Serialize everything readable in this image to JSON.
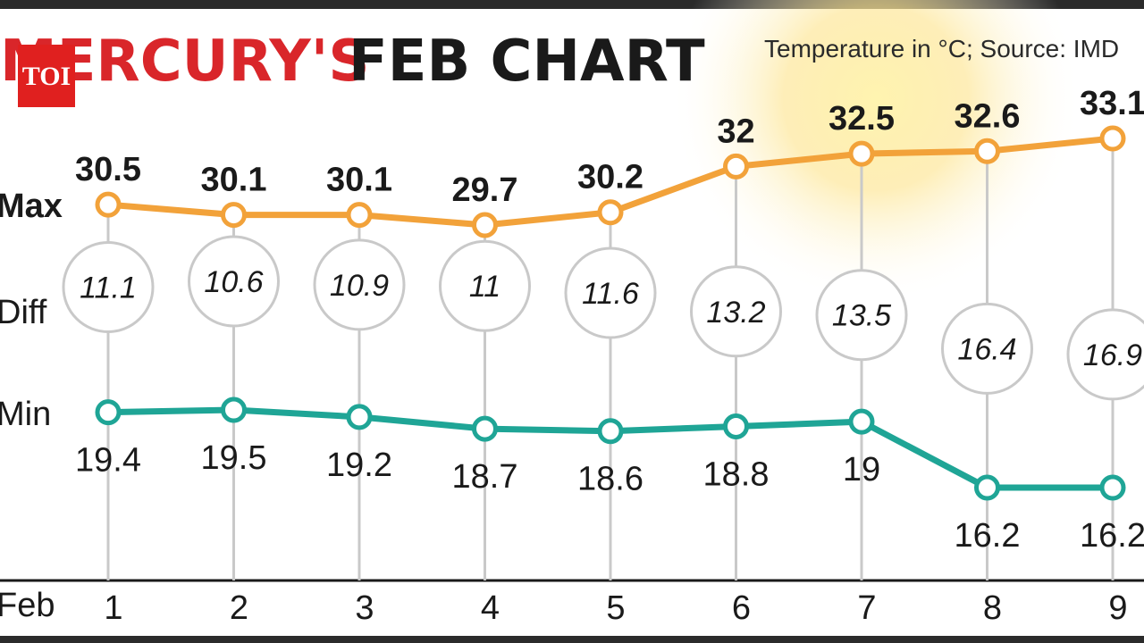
{
  "header": {
    "title_red": "MERCURY'S",
    "title_black": "FEB CHART",
    "source_note": "Temperature in °C; Source: IMD",
    "logo_text": "TOI"
  },
  "row_labels": {
    "max": "Max",
    "diff": "Diff",
    "min": "Min",
    "xaxis": "Feb"
  },
  "colors": {
    "max_line": "#f2a23a",
    "min_line": "#1fa596",
    "accent_red": "#d9262a"
  },
  "chart_data": {
    "type": "line",
    "xlabel": "Feb",
    "categories": [
      "1",
      "2",
      "3",
      "4",
      "5",
      "6",
      "7",
      "8",
      "9"
    ],
    "series": [
      {
        "name": "Max",
        "values": [
          30.5,
          30.1,
          30.1,
          29.7,
          30.2,
          32,
          32.5,
          32.6,
          33.1
        ]
      },
      {
        "name": "Diff",
        "values": [
          11.1,
          10.6,
          10.9,
          11,
          11.6,
          13.2,
          13.5,
          16.4,
          16.9
        ]
      },
      {
        "name": "Min",
        "values": [
          19.4,
          19.5,
          19.2,
          18.7,
          18.6,
          18.8,
          19,
          16.2,
          16.2
        ]
      }
    ],
    "labels": {
      "max": [
        "30.5",
        "30.1",
        "30.1",
        "29.7",
        "30.2",
        "32",
        "32.5",
        "32.6",
        "33.1"
      ],
      "diff": [
        "11.1",
        "10.6",
        "10.9",
        "11",
        "11.6",
        "13.2",
        "13.5",
        "16.4",
        "16.9"
      ],
      "min": [
        "19.4",
        "19.5",
        "19.2",
        "18.7",
        "18.6",
        "18.8",
        "19",
        "16.2",
        "16.2"
      ]
    }
  }
}
